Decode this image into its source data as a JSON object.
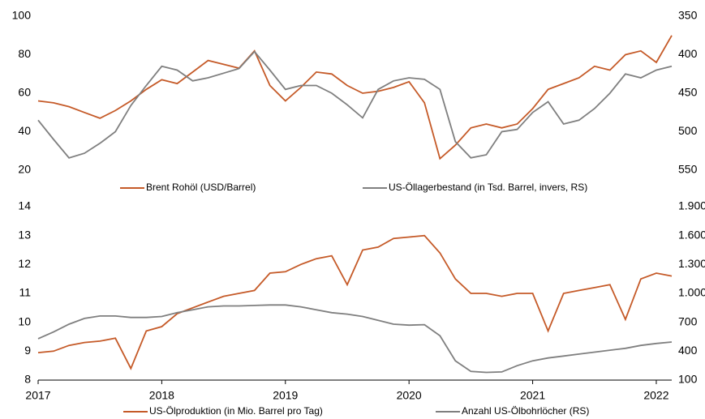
{
  "chart_data": [
    {
      "type": "line",
      "x": [
        2017,
        2017.125,
        2017.25,
        2017.375,
        2017.5,
        2017.625,
        2017.75,
        2017.875,
        2018,
        2018.125,
        2018.25,
        2018.375,
        2018.5,
        2018.625,
        2018.75,
        2018.875,
        2019,
        2019.125,
        2019.25,
        2019.375,
        2019.5,
        2019.625,
        2019.75,
        2019.875,
        2020,
        2020.125,
        2020.25,
        2020.375,
        2020.5,
        2020.625,
        2020.75,
        2020.875,
        2021,
        2021.125,
        2021.25,
        2021.375,
        2021.5,
        2021.625,
        2021.75,
        2021.875,
        2022,
        2022.125
      ],
      "xlim": [
        2017,
        2022.125
      ],
      "ylim": [
        20,
        100
      ],
      "yticks": [
        20,
        40,
        60,
        80,
        100
      ],
      "y2lim": [
        550,
        350
      ],
      "y2ticks": [
        350,
        400,
        450,
        500,
        550
      ],
      "legend": "bottom",
      "series": [
        {
          "name": "Brent Rohöl (USD/Barrel)",
          "color": "#c55a28",
          "values": [
            56,
            55,
            53,
            50,
            47,
            51,
            56,
            62,
            67,
            65,
            71,
            77,
            75,
            73,
            82,
            64,
            56,
            63,
            71,
            70,
            64,
            60,
            61,
            63,
            66,
            55,
            26,
            33,
            42,
            44,
            42,
            44,
            52,
            62,
            65,
            68,
            74,
            72,
            80,
            82,
            76,
            90
          ]
        },
        {
          "name": "US-Öllagerbestand (in Tsd. Barrel, invers, RS)",
          "color": "#7f7f7f",
          "axis": "y2",
          "values": [
            485,
            510,
            534,
            528,
            515,
            500,
            466,
            440,
            415,
            420,
            434,
            430,
            424,
            418,
            396,
            420,
            445,
            440,
            440,
            450,
            465,
            482,
            445,
            434,
            430,
            432,
            445,
            513,
            534,
            530,
            500,
            497,
            475,
            461,
            490,
            485,
            470,
            450,
            425,
            430,
            420,
            415
          ]
        }
      ]
    },
    {
      "type": "line",
      "x": [
        2017,
        2017.125,
        2017.25,
        2017.375,
        2017.5,
        2017.625,
        2017.75,
        2017.875,
        2018,
        2018.125,
        2018.25,
        2018.375,
        2018.5,
        2018.625,
        2018.75,
        2018.875,
        2019,
        2019.125,
        2019.25,
        2019.375,
        2019.5,
        2019.625,
        2019.75,
        2019.875,
        2020,
        2020.125,
        2020.25,
        2020.375,
        2020.5,
        2020.625,
        2020.75,
        2020.875,
        2021,
        2021.125,
        2021.25,
        2021.375,
        2021.5,
        2021.625,
        2021.75,
        2021.875,
        2022,
        2022.125
      ],
      "xlim": [
        2017,
        2022.125
      ],
      "xticks": [
        2017,
        2018,
        2019,
        2020,
        2021,
        2022
      ],
      "ylim": [
        8,
        14
      ],
      "yticks": [
        8,
        9,
        10,
        11,
        12,
        13,
        14
      ],
      "y2lim": [
        100,
        1900
      ],
      "y2ticks": [
        100,
        400,
        700,
        {
          "value": 1000,
          "label": "1.000"
        },
        {
          "value": 1300,
          "label": "1.300"
        },
        {
          "value": 1600,
          "label": "1.600"
        },
        {
          "value": 1900,
          "label": "1.900"
        }
      ],
      "legend": "bottom",
      "series": [
        {
          "name": "US-Ölproduktion (in Mio. Barrel pro Tag)",
          "color": "#c55a28",
          "values": [
            8.95,
            9.0,
            9.2,
            9.3,
            9.35,
            9.45,
            8.4,
            9.7,
            9.85,
            10.3,
            10.5,
            10.7,
            10.9,
            11.0,
            11.1,
            11.7,
            11.75,
            12.0,
            12.2,
            12.3,
            11.3,
            12.5,
            12.6,
            12.9,
            12.95,
            13.0,
            12.4,
            11.5,
            11.0,
            11.0,
            10.9,
            11.0,
            11.0,
            9.7,
            11.0,
            11.1,
            11.2,
            11.3,
            10.1,
            11.5,
            11.7,
            11.6
          ]
        },
        {
          "name": "Anzahl US-Ölbohrlöcher (RS)",
          "color": "#7f7f7f",
          "axis": "y2",
          "values": [
            530,
            600,
            680,
            740,
            765,
            765,
            750,
            750,
            760,
            800,
            830,
            860,
            870,
            870,
            875,
            880,
            880,
            860,
            830,
            800,
            785,
            760,
            720,
            680,
            670,
            675,
            560,
            300,
            190,
            180,
            185,
            250,
            300,
            330,
            350,
            370,
            390,
            410,
            430,
            460,
            480,
            495
          ]
        }
      ]
    }
  ]
}
